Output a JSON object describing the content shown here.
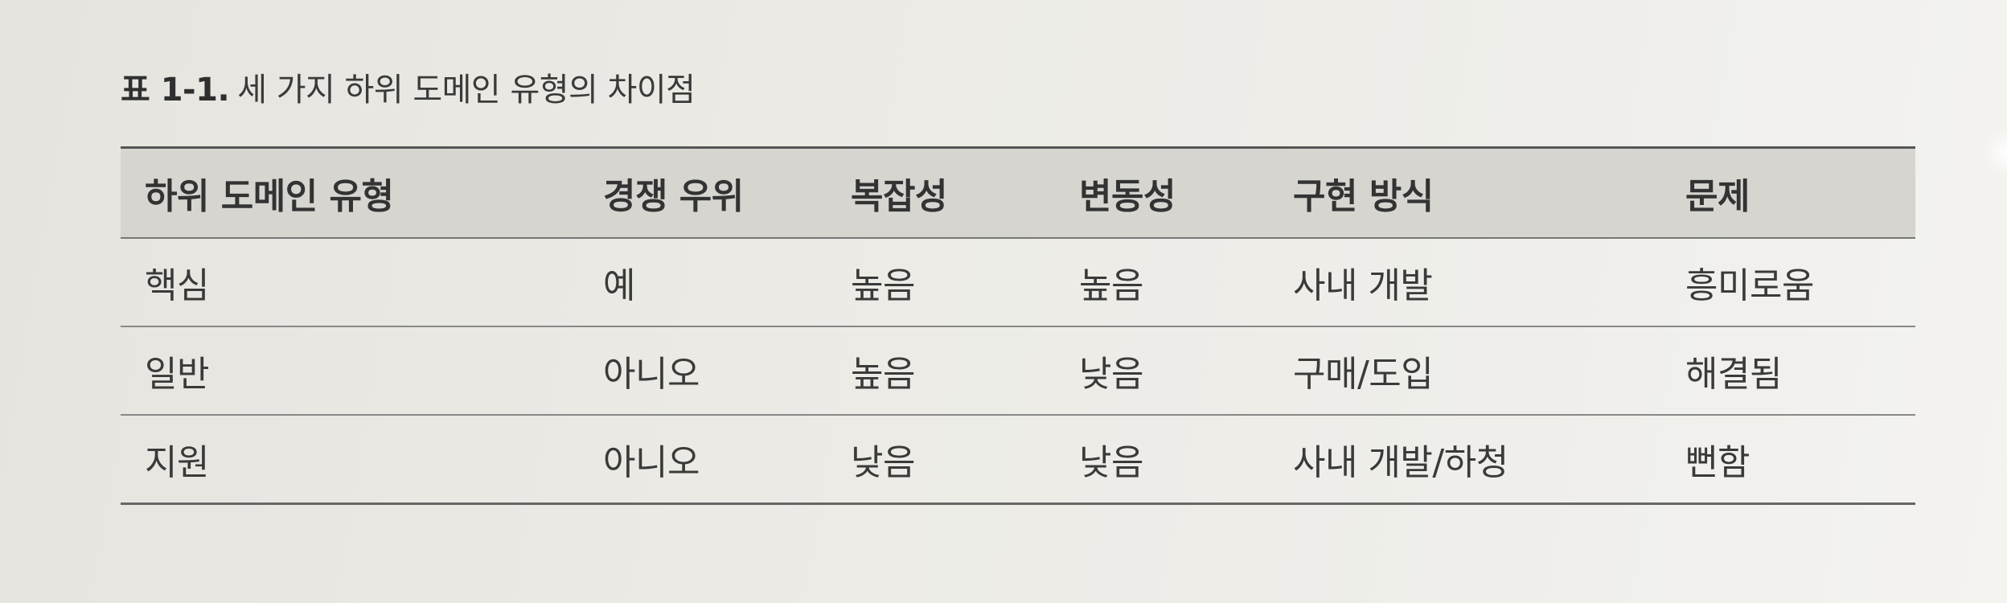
{
  "caption": {
    "label": "표 1-1.",
    "text": "세 가지 하위 도메인 유형의 차이점"
  },
  "table": {
    "headers": [
      "하위 도메인 유형",
      "경쟁 우위",
      "복잡성",
      "변동성",
      "구현 방식",
      "문제"
    ],
    "rows": [
      [
        "핵심",
        "예",
        "높음",
        "높음",
        "사내 개발",
        "흥미로움"
      ],
      [
        "일반",
        "아니오",
        "높음",
        "낮음",
        "구매/도입",
        "해결됨"
      ],
      [
        "지원",
        "아니오",
        "낮음",
        "낮음",
        "사내 개발/하청",
        "뻔함"
      ]
    ]
  }
}
